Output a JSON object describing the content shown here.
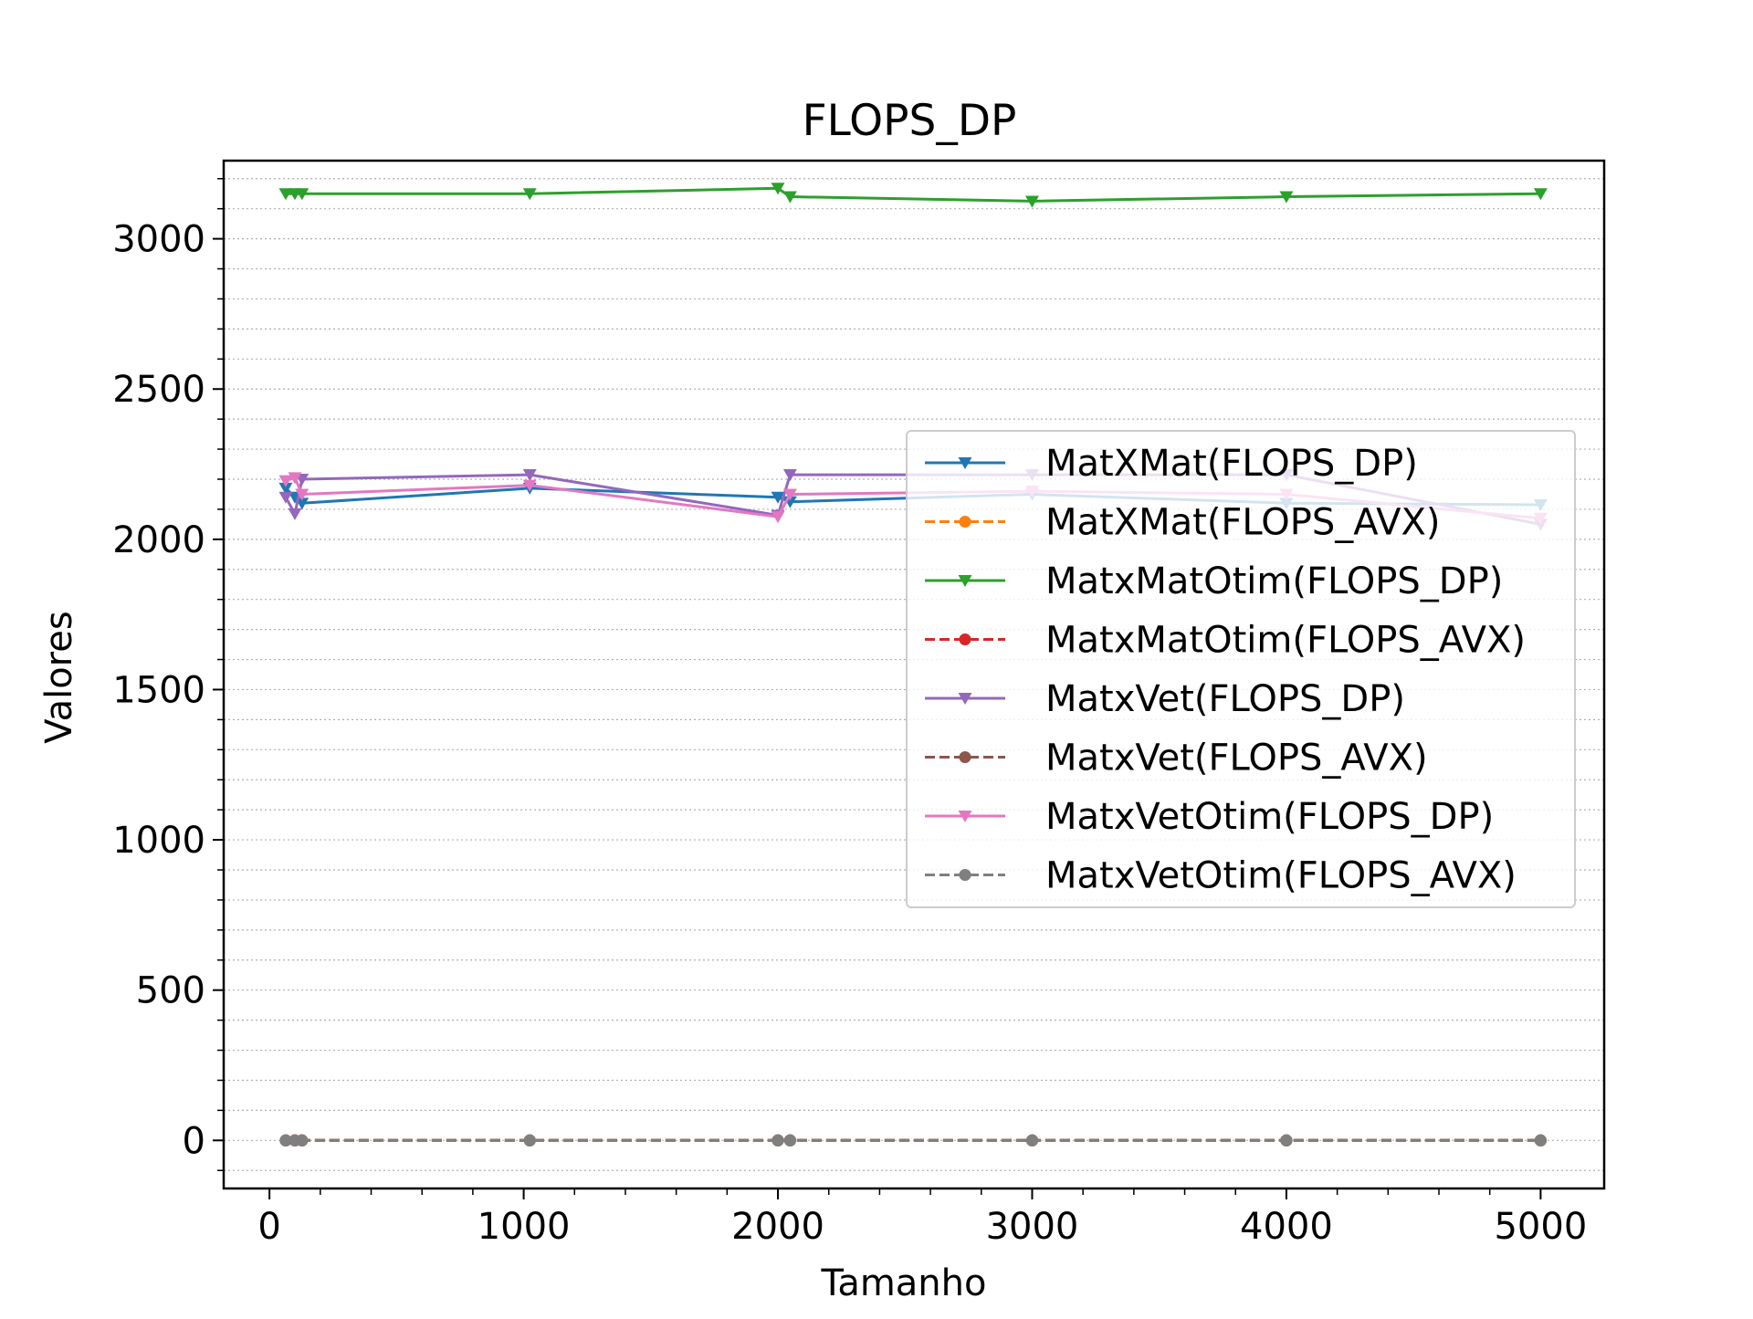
{
  "chart_data": {
    "type": "line",
    "title": "FLOPS_DP",
    "xlabel": "Tamanho",
    "ylabel": "Valores",
    "xlim": [
      -180,
      5250
    ],
    "ylim": [
      -160,
      3260
    ],
    "xticks": [
      0,
      1000,
      2000,
      3000,
      4000,
      5000
    ],
    "xtick_labels": [
      "0",
      "1000",
      "2000",
      "3000",
      "4000",
      "5000"
    ],
    "yticks": [
      0,
      500,
      1000,
      1500,
      2000,
      2500,
      3000
    ],
    "ytick_labels": [
      "0",
      "500",
      "1000",
      "1500",
      "2000",
      "2500",
      "3000"
    ],
    "grid": "y-minor dotted",
    "legend_position": "center-right",
    "x": [
      64,
      100,
      128,
      1024,
      2000,
      2048,
      3000,
      4000,
      5000
    ],
    "series": [
      {
        "name": "MatXMat(FLOPS_DP)",
        "color": "#1f77b4",
        "linestyle": "solid",
        "marker": "triangle-down",
        "values": [
          2170,
          2140,
          2120,
          2170,
          2140,
          2125,
          2150,
          2120,
          2115
        ]
      },
      {
        "name": "MatXMat(FLOPS_AVX)",
        "color": "#ff7f0e",
        "linestyle": "dashed",
        "marker": "circle",
        "values": [
          0,
          0,
          0,
          0,
          0,
          0,
          0,
          0,
          0
        ]
      },
      {
        "name": "MatxMatOtim(FLOPS_DP)",
        "color": "#2ca02c",
        "linestyle": "solid",
        "marker": "triangle-down",
        "values": [
          3150,
          3150,
          3150,
          3150,
          3168,
          3140,
          3125,
          3140,
          3150
        ]
      },
      {
        "name": "MatxMatOtim(FLOPS_AVX)",
        "color": "#d62728",
        "linestyle": "dashed",
        "marker": "circle",
        "values": [
          0,
          0,
          0,
          0,
          0,
          0,
          0,
          0,
          0
        ]
      },
      {
        "name": "MatxVet(FLOPS_DP)",
        "color": "#9467bd",
        "linestyle": "solid",
        "marker": "triangle-down",
        "values": [
          2140,
          2085,
          2200,
          2215,
          2080,
          2215,
          2215,
          2215,
          2050
        ]
      },
      {
        "name": "MatxVet(FLOPS_AVX)",
        "color": "#8c564b",
        "linestyle": "dashed",
        "marker": "circle",
        "values": [
          0,
          0,
          0,
          0,
          0,
          0,
          0,
          0,
          0
        ]
      },
      {
        "name": "MatxVetOtim(FLOPS_DP)",
        "color": "#e377c2",
        "linestyle": "solid",
        "marker": "triangle-down",
        "values": [
          2195,
          2205,
          2150,
          2180,
          2075,
          2150,
          2160,
          2150,
          2070
        ]
      },
      {
        "name": "MatxVetOtim(FLOPS_AVX)",
        "color": "#7f7f7f",
        "linestyle": "dashed",
        "marker": "circle",
        "values": [
          0,
          0,
          0,
          0,
          0,
          0,
          0,
          0,
          0
        ]
      }
    ]
  }
}
